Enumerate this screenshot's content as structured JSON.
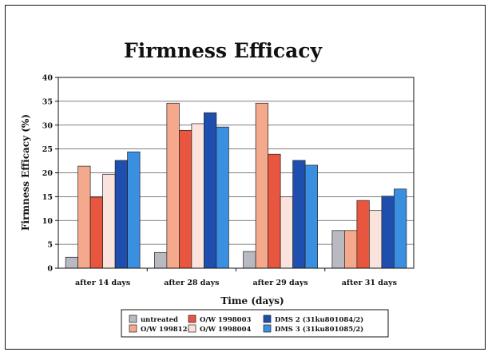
{
  "chart_data": {
    "type": "bar",
    "title": "Firmness Efficacy",
    "xlabel": "Time (days)",
    "ylabel": "Firmness Efficacy (%)",
    "ylim": [
      0,
      40
    ],
    "yticks": [
      0,
      5,
      10,
      15,
      20,
      25,
      30,
      35,
      40
    ],
    "grid": "horizontal",
    "legend_position": "bottom",
    "categories": [
      "after 14 days",
      "after 28 days",
      "after 29 days",
      "after 31 days"
    ],
    "series": [
      {
        "name": "untreated",
        "color": "#b9b9c2",
        "values": [
          2.3,
          3.3,
          3.5,
          7.9
        ]
      },
      {
        "name": "O/W 1998124",
        "color": "#f4a98c",
        "values": [
          21.4,
          34.6,
          34.6,
          7.9
        ]
      },
      {
        "name": "O/W 1998003",
        "color": "#e8563f",
        "values": [
          14.9,
          28.9,
          23.9,
          14.2
        ]
      },
      {
        "name": "O/W 1998004",
        "color": "#fbe3dd",
        "values": [
          19.7,
          30.3,
          15.0,
          12.1
        ]
      },
      {
        "name": "DMS 2 (31ku801084/2)",
        "color": "#1f4fae",
        "values": [
          22.6,
          32.6,
          22.6,
          15.1
        ]
      },
      {
        "name": "DMS 3 (31ku801085/2)",
        "color": "#3a8fe0",
        "values": [
          24.4,
          29.6,
          21.6,
          16.6
        ]
      }
    ],
    "legend_order": [
      0,
      2,
      4,
      1,
      3,
      5
    ]
  }
}
